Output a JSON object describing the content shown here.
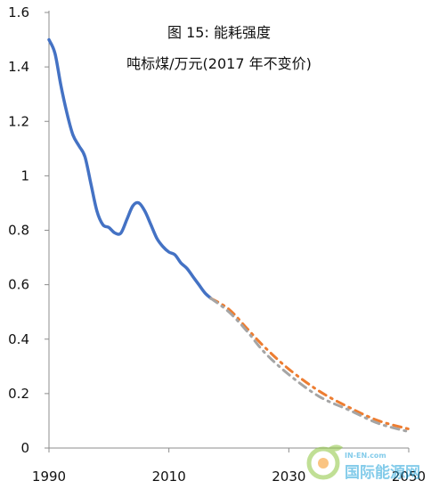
{
  "chart_data": {
    "type": "line",
    "title": "图 15: 能耗强度",
    "subtitle": "吨标煤/万元(2017 年不变价)",
    "xlim": [
      1990,
      2050
    ],
    "ylim": [
      0,
      1.6
    ],
    "x_ticks": [
      {
        "value": 1990,
        "label": "1990"
      },
      {
        "value": 2010,
        "label": "2010"
      },
      {
        "value": 2030,
        "label": "2030"
      },
      {
        "value": 2050,
        "label": "2050"
      }
    ],
    "y_ticks": [
      {
        "value": 0,
        "label": "0"
      },
      {
        "value": 0.2,
        "label": "0.2"
      },
      {
        "value": 0.4,
        "label": "0.4"
      },
      {
        "value": 0.6,
        "label": "0.6"
      },
      {
        "value": 0.8,
        "label": "0.8"
      },
      {
        "value": 1,
        "label": "1"
      },
      {
        "value": 1.2,
        "label": "1.2"
      },
      {
        "value": 1.4,
        "label": "1.4"
      },
      {
        "value": 1.6,
        "label": "1.6"
      }
    ],
    "grid": false,
    "legend": "none",
    "series": [
      {
        "style": "solid",
        "color": "#4472C4",
        "x": [
          1990,
          1991,
          1992,
          1993,
          1994,
          1995,
          1996,
          1997,
          1998,
          1999,
          2000,
          2001,
          2002,
          2003,
          2004,
          2005,
          2006,
          2007,
          2008,
          2009,
          2010,
          2011,
          2012,
          2013,
          2014,
          2015,
          2016,
          2017
        ],
        "y": [
          1.5,
          1.45,
          1.33,
          1.23,
          1.15,
          1.11,
          1.07,
          0.97,
          0.87,
          0.82,
          0.81,
          0.79,
          0.79,
          0.84,
          0.89,
          0.9,
          0.87,
          0.82,
          0.77,
          0.74,
          0.72,
          0.71,
          0.68,
          0.66,
          0.63,
          0.6,
          0.57,
          0.55
        ]
      },
      {
        "style": "dashdot",
        "color": "#ED7D31",
        "x": [
          2017,
          2020,
          2023,
          2026,
          2030,
          2035,
          2040,
          2045,
          2050
        ],
        "y": [
          0.55,
          0.51,
          0.44,
          0.37,
          0.29,
          0.21,
          0.15,
          0.1,
          0.07
        ]
      },
      {
        "style": "dashdot",
        "color": "#A5A5A5",
        "x": [
          2017,
          2020,
          2023,
          2026,
          2030,
          2035,
          2040,
          2045,
          2050
        ],
        "y": [
          0.55,
          0.5,
          0.43,
          0.35,
          0.27,
          0.19,
          0.14,
          0.09,
          0.06
        ]
      }
    ]
  },
  "watermark": {
    "text": "国际能源网",
    "domain": "IN-EN.com",
    "colors": {
      "green": "#8DC63F",
      "orange": "#F7941D",
      "blue": "#1FA2D9"
    }
  }
}
